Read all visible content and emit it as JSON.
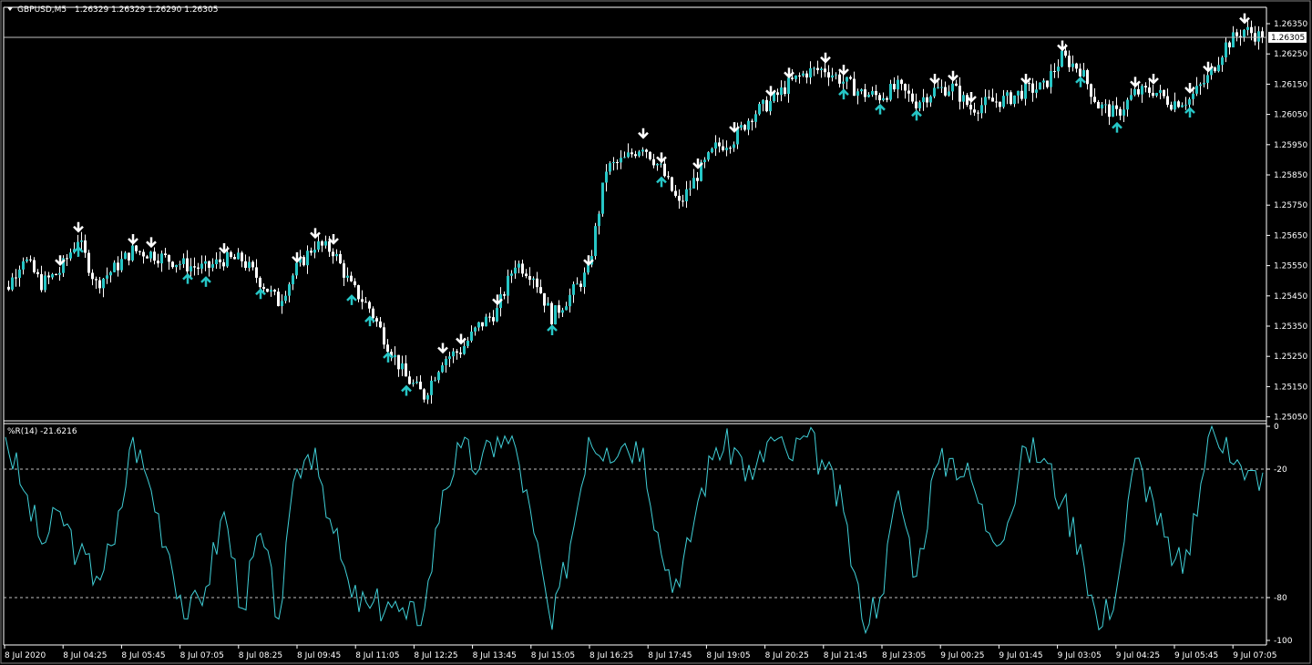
{
  "header": {
    "symbol": "GBPUSD,M5",
    "ohlc": "1.26329 1.26329 1.26290 1.26305"
  },
  "indicator": {
    "label": "%R(14) -21.6216"
  },
  "colors": {
    "background": "#000000",
    "bull_candle": "#26c6c6",
    "bear_candle": "#ffffff",
    "wick": "#ffffff",
    "down_arrow": "#ffffff",
    "up_arrow": "#26c6c6",
    "wpr_line": "#40d0d8",
    "grid_levels": "#c0c0c0",
    "bid_line": "#c0c0c0"
  },
  "chart_data": [
    {
      "type": "candlestick",
      "title": "GBPUSD,M5",
      "current_price": 1.26305,
      "current_price_label": "1.26305",
      "ylim": [
        1.2503,
        1.264
      ],
      "y_ticks": [
        "1.26350",
        "1.26250",
        "1.26150",
        "1.26050",
        "1.25950",
        "1.25850",
        "1.25750",
        "1.25650",
        "1.25550",
        "1.25450",
        "1.25350",
        "1.25250",
        "1.25150",
        "1.25050"
      ],
      "x_ticks": [
        "8 Jul 2020",
        "8 Jul 04:25",
        "8 Jul 05:45",
        "8 Jul 07:05",
        "8 Jul 08:25",
        "8 Jul 09:45",
        "8 Jul 11:05",
        "8 Jul 12:25",
        "8 Jul 13:45",
        "8 Jul 15:05",
        "8 Jul 16:25",
        "8 Jul 17:45",
        "8 Jul 19:05",
        "8 Jul 20:25",
        "8 Jul 21:45",
        "8 Jul 23:05",
        "9 Jul 00:25",
        "9 Jul 01:45",
        "9 Jul 03:05",
        "9 Jul 04:25",
        "9 Jul 05:45",
        "9 Jul 07:05"
      ],
      "close_approx": [
        1.2546,
        1.2558,
        1.2549,
        1.2553,
        1.2564,
        1.2549,
        1.2554,
        1.256,
        1.2559,
        1.2557,
        1.2555,
        1.2554,
        1.2557,
        1.2557,
        1.255,
        1.2543,
        1.2554,
        1.2562,
        1.256,
        1.2548,
        1.2541,
        1.2529,
        1.2518,
        1.2512,
        1.2524,
        1.2527,
        1.2535,
        1.254,
        1.2556,
        1.2552,
        1.2538,
        1.2545,
        1.2553,
        1.2587,
        1.259,
        1.2595,
        1.2587,
        1.2575,
        1.2585,
        1.2594,
        1.2597,
        1.2605,
        1.2609,
        1.2615,
        1.2619,
        1.262,
        1.2616,
        1.2612,
        1.2611,
        1.2614,
        1.2609,
        1.2613,
        1.2614,
        1.2607,
        1.2609,
        1.261,
        1.2613,
        1.2614,
        1.2624,
        1.262,
        1.2608,
        1.2605,
        1.2612,
        1.2613,
        1.2609,
        1.261,
        1.2617,
        1.2628,
        1.2633,
        1.26305
      ],
      "down_arrows_at": [
        3,
        4,
        7,
        8,
        12,
        16,
        17,
        18,
        24,
        25,
        27,
        32,
        35,
        36,
        38,
        40,
        42,
        43,
        45,
        46,
        51,
        52,
        53,
        56,
        58,
        62,
        63,
        65,
        66,
        68
      ],
      "up_arrows_at": [
        4,
        10,
        11,
        14,
        19,
        20,
        21,
        22,
        30,
        36,
        46,
        48,
        50,
        59,
        61,
        65
      ]
    },
    {
      "type": "line",
      "title": "%R(14)",
      "ylim": [
        -100,
        0
      ],
      "levels": [
        -20,
        -80
      ],
      "y_ticks": [
        "0",
        "-20",
        "-80",
        "-100"
      ],
      "values": [
        -5,
        -30,
        -55,
        -40,
        -60,
        -70,
        -55,
        -5,
        -30,
        -60,
        -90,
        -75,
        -40,
        -85,
        -50,
        -90,
        -20,
        -10,
        -50,
        -80,
        -85,
        -82,
        -90,
        -85,
        -30,
        -10,
        -20,
        -5,
        -10,
        -50,
        -95,
        -55,
        -5,
        -10,
        -8,
        -10,
        -60,
        -75,
        -35,
        -10,
        -10,
        -25,
        -5,
        -15,
        -5,
        -20,
        -40,
        -90,
        -80,
        -30,
        -70,
        -20,
        -15,
        -25,
        -50,
        -45,
        -10,
        -15,
        -35,
        -55,
        -95,
        -75,
        -15,
        -35,
        -65,
        -60,
        -5,
        -5,
        -25,
        -21.6216
      ]
    }
  ]
}
